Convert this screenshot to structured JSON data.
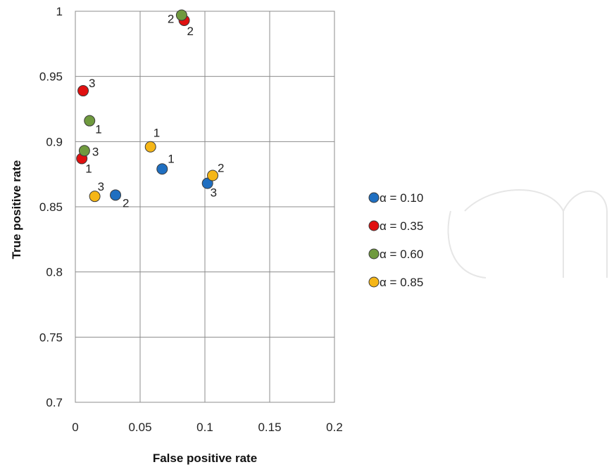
{
  "chart_data": {
    "type": "scatter",
    "xlabel": "False positive rate",
    "ylabel": "True positive rate",
    "xlim": [
      0,
      0.2
    ],
    "ylim": [
      0.7,
      1
    ],
    "x_ticks": [
      "0",
      "0.05",
      "0.1",
      "0.15",
      "0.2"
    ],
    "y_ticks": [
      "0.7",
      "0.75",
      "0.8",
      "0.85",
      "0.9",
      "0.95",
      "1"
    ],
    "grid": true,
    "legend_position": "right",
    "series": [
      {
        "name": "α = 0.10",
        "color": "#1f6fc1",
        "points": [
          {
            "x": 0.067,
            "y": 0.879,
            "label": "1"
          },
          {
            "x": 0.031,
            "y": 0.859,
            "label": "2"
          },
          {
            "x": 0.102,
            "y": 0.868,
            "label": "3"
          }
        ]
      },
      {
        "name": "α = 0.35",
        "color": "#e01010",
        "points": [
          {
            "x": 0.005,
            "y": 0.887,
            "label": "1"
          },
          {
            "x": 0.084,
            "y": 0.993,
            "label": "2"
          },
          {
            "x": 0.006,
            "y": 0.939,
            "label": "3"
          }
        ]
      },
      {
        "name": "α = 0.60",
        "color": "#6f9a3e",
        "points": [
          {
            "x": 0.011,
            "y": 0.916,
            "label": "1"
          },
          {
            "x": 0.082,
            "y": 0.997,
            "label": "2"
          },
          {
            "x": 0.007,
            "y": 0.893,
            "label": "3"
          }
        ]
      },
      {
        "name": "α = 0.85",
        "color": "#f5b617",
        "points": [
          {
            "x": 0.058,
            "y": 0.896,
            "label": "1"
          },
          {
            "x": 0.106,
            "y": 0.874,
            "label": "2"
          },
          {
            "x": 0.015,
            "y": 0.858,
            "label": "3"
          }
        ]
      }
    ]
  }
}
